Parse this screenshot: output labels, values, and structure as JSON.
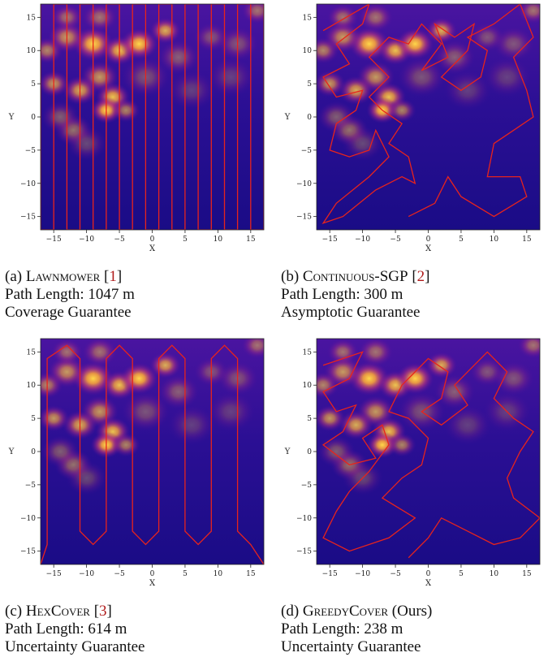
{
  "figure": {
    "panels": [
      {
        "id": "a",
        "caption_prefix": "(a) ",
        "method": "Lawnmower",
        "ref_open": " [",
        "ref": "1",
        "ref_close": "]",
        "suffix": "",
        "path_length": "Path Length: 1047 m",
        "guarantee": "Coverage Guarantee"
      },
      {
        "id": "b",
        "caption_prefix": "(b) ",
        "method": "Continuous-SGP",
        "ref_open": " [",
        "ref": "2",
        "ref_close": "]",
        "suffix": "",
        "path_length": "Path Length: 300 m",
        "guarantee": "Asymptotic Guarantee"
      },
      {
        "id": "c",
        "caption_prefix": "(c) ",
        "method": "HexCover",
        "ref_open": " [",
        "ref": "3",
        "ref_close": "]",
        "suffix": "",
        "path_length": "Path Length: 614 m",
        "guarantee": "Uncertainty Guarantee"
      },
      {
        "id": "d",
        "caption_prefix": "(d) ",
        "method": "GreedyCover",
        "ref_open": "",
        "ref": "",
        "ref_close": "",
        "suffix": " (Ours)",
        "path_length": "Path Length: 238 m",
        "guarantee": "Uncertainty Guarantee"
      }
    ],
    "axes": {
      "xlabel": "X",
      "ylabel": "Y",
      "xticks": [
        -15,
        -10,
        -5,
        0,
        5,
        10,
        15
      ],
      "yticks": [
        15,
        10,
        5,
        0,
        -5,
        -10,
        -15
      ],
      "xlim": [
        -17,
        17
      ],
      "ylim": [
        -17,
        17
      ]
    },
    "colors": {
      "background": "#1a0c86",
      "path": "#e8231c",
      "hot": "#ffd84a"
    }
  },
  "chart_data": [
    {
      "type": "heatmap",
      "colormap": "plasma",
      "xlabel": "X",
      "ylabel": "Y",
      "xlim": [
        -17,
        17
      ],
      "ylim": [
        -17,
        17
      ],
      "path": [
        [
          -17,
          17
        ],
        [
          -17,
          -17
        ],
        [
          -15,
          -17
        ],
        [
          -15,
          17
        ],
        [
          -13,
          17
        ],
        [
          -13,
          -17
        ],
        [
          -11,
          -17
        ],
        [
          -11,
          17
        ],
        [
          -9,
          17
        ],
        [
          -9,
          -17
        ],
        [
          -7,
          -17
        ],
        [
          -7,
          17
        ],
        [
          -5,
          17
        ],
        [
          -5,
          -17
        ],
        [
          -3,
          -17
        ],
        [
          -3,
          17
        ],
        [
          -1,
          17
        ],
        [
          -1,
          -17
        ],
        [
          1,
          -17
        ],
        [
          1,
          17
        ],
        [
          3,
          17
        ],
        [
          3,
          -17
        ],
        [
          5,
          -17
        ],
        [
          5,
          17
        ],
        [
          7,
          17
        ],
        [
          7,
          -17
        ],
        [
          9,
          -17
        ],
        [
          9,
          17
        ],
        [
          11,
          17
        ],
        [
          11,
          -17
        ],
        [
          13,
          -17
        ],
        [
          13,
          17
        ],
        [
          15,
          17
        ],
        [
          15,
          -17
        ],
        [
          17,
          -17
        ],
        [
          17,
          17
        ]
      ]
    },
    {
      "type": "heatmap",
      "colormap": "plasma",
      "xlabel": "X",
      "ylabel": "Y",
      "xlim": [
        -17,
        17
      ],
      "ylim": [
        -17,
        17
      ],
      "path": [
        [
          -16,
          13
        ],
        [
          -9,
          17
        ],
        [
          -10,
          14
        ],
        [
          -14,
          11
        ],
        [
          -12,
          8
        ],
        [
          -16,
          6
        ],
        [
          -14,
          3
        ],
        [
          -10,
          4
        ],
        [
          -11,
          1
        ],
        [
          -14,
          -1
        ],
        [
          -15,
          -5
        ],
        [
          -12,
          -6
        ],
        [
          -9,
          -5
        ],
        [
          -8,
          -2
        ],
        [
          -6,
          -6
        ],
        [
          -9,
          -9
        ],
        [
          -14,
          -13
        ],
        [
          -16,
          -16
        ],
        [
          -13,
          -15
        ],
        [
          -8,
          -11
        ],
        [
          -4,
          -9
        ],
        [
          -2,
          -10
        ],
        [
          -3,
          -6
        ],
        [
          -6,
          -4
        ],
        [
          -4,
          -1
        ],
        [
          -7,
          1
        ],
        [
          -9,
          3
        ],
        [
          -6,
          6
        ],
        [
          -9,
          9
        ],
        [
          -6,
          12
        ],
        [
          -3,
          11
        ],
        [
          -1,
          14
        ],
        [
          2,
          11
        ],
        [
          -1,
          7
        ],
        [
          3,
          9
        ],
        [
          1,
          14
        ],
        [
          4,
          12
        ],
        [
          7,
          14
        ],
        [
          6,
          10
        ],
        [
          2,
          6
        ],
        [
          5,
          4
        ],
        [
          8,
          6
        ],
        [
          9,
          10
        ],
        [
          6,
          12
        ],
        [
          10,
          14
        ],
        [
          14,
          17
        ],
        [
          16,
          12
        ],
        [
          13,
          9
        ],
        [
          15,
          4
        ],
        [
          16,
          0
        ],
        [
          13,
          -2
        ],
        [
          10,
          -4
        ],
        [
          9,
          -9
        ],
        [
          14,
          -9
        ],
        [
          15,
          -12
        ],
        [
          10,
          -15
        ],
        [
          5,
          -12
        ],
        [
          3,
          -9
        ],
        [
          1,
          -13
        ],
        [
          -3,
          -15
        ]
      ]
    },
    {
      "type": "heatmap",
      "colormap": "plasma",
      "xlabel": "X",
      "ylabel": "Y",
      "xlim": [
        -17,
        17
      ],
      "ylim": [
        -17,
        17
      ],
      "path": [
        [
          -17,
          -17
        ],
        [
          -16,
          -14
        ],
        [
          -16,
          14
        ],
        [
          -13,
          16
        ],
        [
          -11,
          14
        ],
        [
          -11,
          -12
        ],
        [
          -9,
          -14
        ],
        [
          -7,
          -12
        ],
        [
          -7,
          14
        ],
        [
          -5,
          16
        ],
        [
          -3,
          14
        ],
        [
          -3,
          -12
        ],
        [
          -1,
          -14
        ],
        [
          1,
          -12
        ],
        [
          1,
          14
        ],
        [
          3,
          16
        ],
        [
          5,
          14
        ],
        [
          5,
          -12
        ],
        [
          7,
          -14
        ],
        [
          9,
          -12
        ],
        [
          9,
          14
        ],
        [
          11,
          16
        ],
        [
          13,
          14
        ],
        [
          13,
          -12
        ],
        [
          15,
          -14
        ],
        [
          17,
          -17
        ]
      ]
    },
    {
      "type": "heatmap",
      "colormap": "plasma",
      "xlabel": "X",
      "ylabel": "Y",
      "xlim": [
        -17,
        17
      ],
      "ylim": [
        -17,
        17
      ],
      "path": [
        [
          -16,
          13
        ],
        [
          -10,
          15
        ],
        [
          -12,
          11
        ],
        [
          -16,
          9
        ],
        [
          -14,
          6
        ],
        [
          -11,
          7
        ],
        [
          -13,
          3
        ],
        [
          -16,
          1
        ],
        [
          -12,
          -2
        ],
        [
          -8,
          -1
        ],
        [
          -10,
          2
        ],
        [
          -7,
          4
        ],
        [
          -6,
          1
        ],
        [
          -9,
          -3
        ],
        [
          -12,
          -6
        ],
        [
          -14,
          -9
        ],
        [
          -16,
          -13
        ],
        [
          -12,
          -15
        ],
        [
          -6,
          -13
        ],
        [
          -2,
          -10
        ],
        [
          -7,
          -7
        ],
        [
          -4,
          -4
        ],
        [
          -1,
          -2
        ],
        [
          0,
          2
        ],
        [
          -3,
          5
        ],
        [
          -6,
          6
        ],
        [
          -4,
          10
        ],
        [
          0,
          14
        ],
        [
          3,
          12
        ],
        [
          2,
          8
        ],
        [
          -1,
          6
        ],
        [
          2,
          4
        ],
        [
          6,
          7
        ],
        [
          4,
          10
        ],
        [
          7,
          13
        ],
        [
          9,
          15
        ],
        [
          12,
          12
        ],
        [
          10,
          8
        ],
        [
          13,
          5
        ],
        [
          16,
          3
        ],
        [
          14,
          0
        ],
        [
          12,
          -4
        ],
        [
          13,
          -7
        ],
        [
          17,
          -10
        ],
        [
          14,
          -13
        ],
        [
          10,
          -14
        ],
        [
          6,
          -12
        ],
        [
          2,
          -10
        ],
        [
          0,
          -13
        ],
        [
          -3,
          -16
        ]
      ]
    }
  ]
}
